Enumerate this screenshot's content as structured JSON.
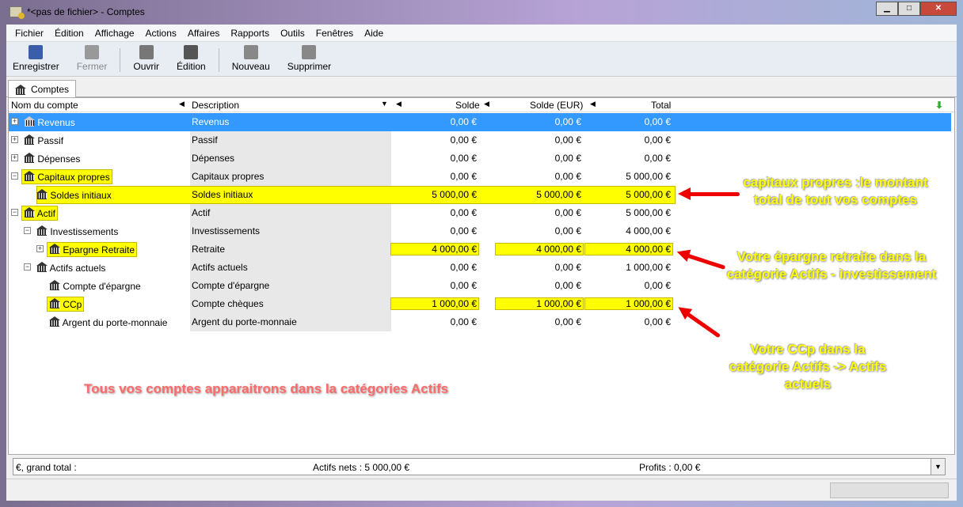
{
  "window": {
    "title": "*<pas de fichier> - Comptes"
  },
  "menu": [
    "Fichier",
    "Édition",
    "Affichage",
    "Actions",
    "Affaires",
    "Rapports",
    "Outils",
    "Fenêtres",
    "Aide"
  ],
  "toolbar": [
    {
      "label": "Enregistrer",
      "icon": "save-icon",
      "enabled": true
    },
    {
      "label": "Fermer",
      "icon": "close-icon",
      "enabled": false
    },
    {
      "label": "Ouvrir",
      "icon": "open-icon",
      "enabled": true
    },
    {
      "label": "Édition",
      "icon": "edit-icon",
      "enabled": true
    },
    {
      "label": "Nouveau",
      "icon": "new-account-icon",
      "enabled": true
    },
    {
      "label": "Supprimer",
      "icon": "delete-account-icon",
      "enabled": true
    }
  ],
  "tab": {
    "label": "Comptes"
  },
  "columns": {
    "name": "Nom du compte",
    "description": "Description",
    "solde": "Solde",
    "solde_eur": "Solde (EUR)",
    "total": "Total"
  },
  "accounts": [
    {
      "name": "Revenus",
      "description": "Revenus",
      "solde": "0,00 €",
      "solde_eur": "0,00 €",
      "total": "0,00 €",
      "level": 0,
      "expander": "+",
      "selected": true
    },
    {
      "name": "Passif",
      "description": "Passif",
      "solde": "0,00 €",
      "solde_eur": "0,00 €",
      "total": "0,00 €",
      "level": 0,
      "expander": "+"
    },
    {
      "name": "Dépenses",
      "description": "Dépenses",
      "solde": "0,00 €",
      "solde_eur": "0,00 €",
      "total": "0,00 €",
      "level": 0,
      "expander": "+"
    },
    {
      "name": "Capitaux propres",
      "description": "Capitaux propres",
      "solde": "0,00 €",
      "solde_eur": "0,00 €",
      "total": "5 000,00 €",
      "level": 0,
      "expander": "−",
      "hl_name": true
    },
    {
      "name": "Soldes initiaux",
      "description": "Soldes initiaux",
      "solde": "5 000,00 €",
      "solde_eur": "5 000,00 €",
      "total": "5 000,00 €",
      "level": 1,
      "hl_row": true
    },
    {
      "name": "Actif",
      "description": "Actif",
      "solde": "0,00 €",
      "solde_eur": "0,00 €",
      "total": "5 000,00 €",
      "level": 0,
      "expander": "−",
      "hl_name": true
    },
    {
      "name": "Investissements",
      "description": "Investissements",
      "solde": "0,00 €",
      "solde_eur": "0,00 €",
      "total": "4 000,00 €",
      "level": 1,
      "expander": "−"
    },
    {
      "name": "Epargne Retraite",
      "description": "Retraite",
      "solde": "4 000,00 €",
      "solde_eur": "4 000,00 €",
      "total": "4 000,00 €",
      "level": 2,
      "expander": "+",
      "hl_name": true,
      "hl_nums": true
    },
    {
      "name": "Actifs actuels",
      "description": "Actifs actuels",
      "solde": "0,00 €",
      "solde_eur": "0,00 €",
      "total": "1 000,00 €",
      "level": 1,
      "expander": "−"
    },
    {
      "name": "Compte d'épargne",
      "description": "Compte d'épargne",
      "solde": "0,00 €",
      "solde_eur": "0,00 €",
      "total": "0,00 €",
      "level": 2
    },
    {
      "name": "CCp",
      "description": "Compte chèques",
      "solde": "1 000,00 €",
      "solde_eur": "1 000,00 €",
      "total": "1 000,00 €",
      "level": 2,
      "hl_name": true,
      "hl_nums": true
    },
    {
      "name": "Argent du porte-monnaie",
      "description": "Argent du porte-monnaie",
      "solde": "0,00 €",
      "solde_eur": "0,00 €",
      "total": "0,00 €",
      "level": 2
    }
  ],
  "annotations": {
    "capitaux": "capitaux propres :le montant total de tout vos comptes",
    "epargne": "Votre épargne retraite dans la catégorie Actifs - investissement",
    "ccp": "Votre CCp dans la catégorie Actifs -> Actifs actuels",
    "tous": "Tous vos comptes apparaitrons dans la catégories Actifs"
  },
  "summary": {
    "label": "€, grand total :",
    "net": "Actifs nets : 5 000,00 €",
    "profits": "Profits : 0,00 €"
  },
  "colors": {
    "selection": "#3399ff",
    "highlight": "#ffff00",
    "annotation": "#ffff00",
    "arrow": "#ee0000"
  }
}
